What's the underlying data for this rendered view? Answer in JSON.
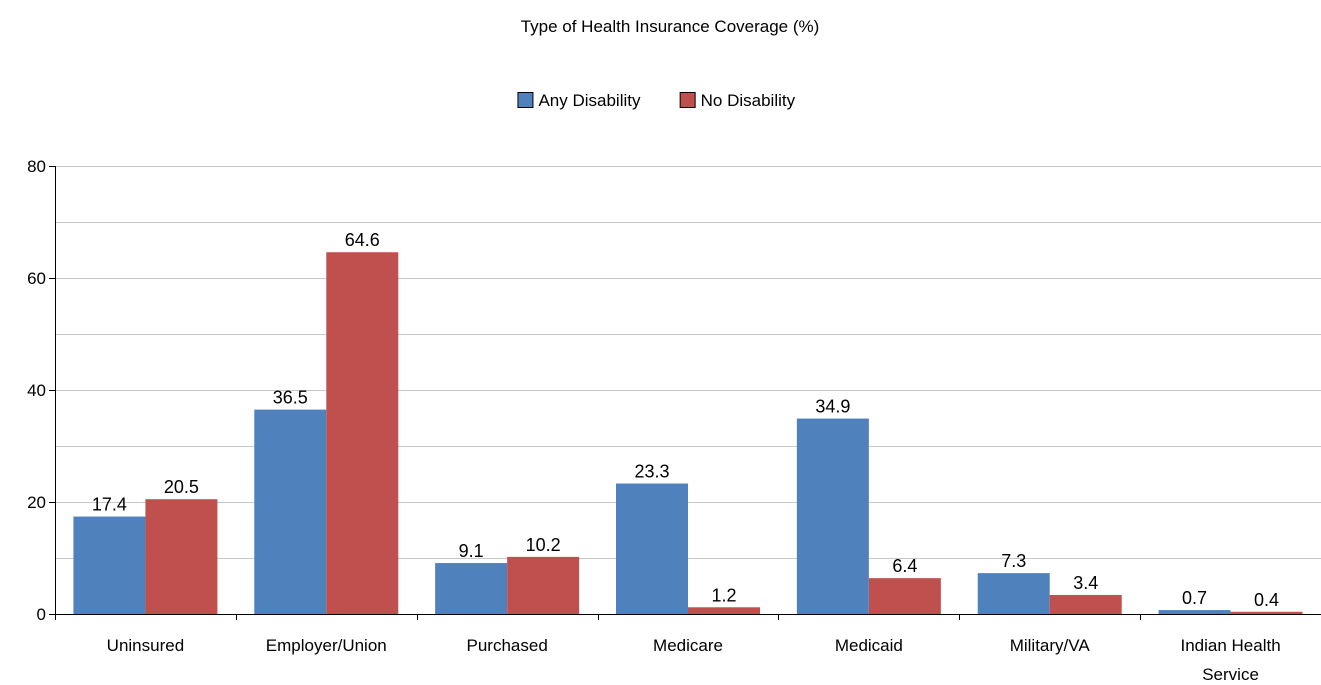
{
  "chart_data": {
    "type": "bar",
    "title": "Type of Health Insurance Coverage (%)",
    "categories": [
      [
        "Uninsured"
      ],
      [
        "Employer/Union"
      ],
      [
        "Purchased"
      ],
      [
        "Medicare"
      ],
      [
        "Medicaid"
      ],
      [
        "Military/VA"
      ],
      [
        "Indian Health",
        "Service"
      ]
    ],
    "series": [
      {
        "name": "Any Disability",
        "color": "#4f81bd",
        "values": [
          17.4,
          36.5,
          9.1,
          23.3,
          34.9,
          7.3,
          0.7
        ],
        "labels": [
          "17.4",
          "36.5",
          "9.1",
          "23.3",
          "34.9",
          "7.3",
          "0.7"
        ]
      },
      {
        "name": "No Disability",
        "color": "#c0504d",
        "values": [
          20.5,
          64.6,
          10.2,
          1.2,
          6.4,
          3.4,
          0.4
        ],
        "labels": [
          "20.5",
          "64.6",
          "10.2",
          "1.2",
          "6.4",
          "3.4",
          "0.4"
        ]
      }
    ],
    "ylim": [
      0,
      80
    ],
    "yticks": [
      "0",
      "20",
      "40",
      "60",
      "80"
    ],
    "grid": true,
    "legend_position": "top-center",
    "xlabel": "",
    "ylabel": ""
  }
}
